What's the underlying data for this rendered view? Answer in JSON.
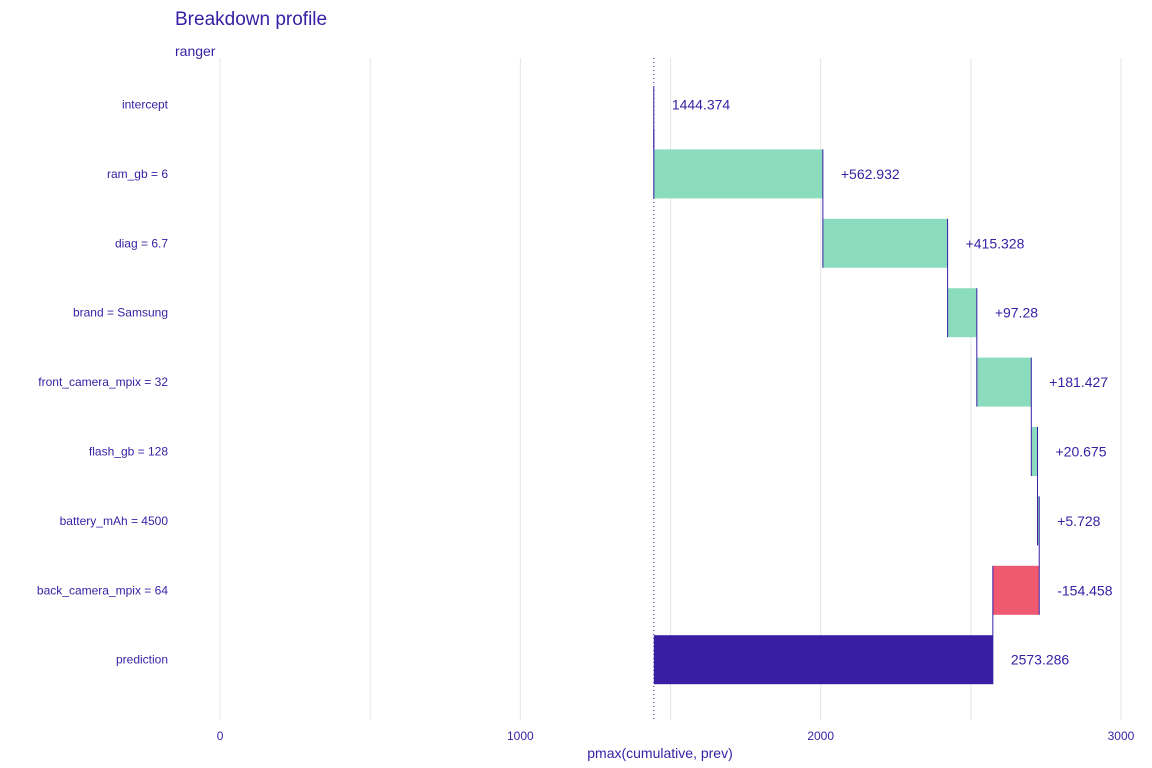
{
  "chart_data": {
    "type": "bar",
    "subtype": "waterfall",
    "title": "Breakdown profile",
    "subtitle": "ranger",
    "xlabel": "pmax(cumulative, prev)",
    "ylabel": "",
    "xlim": [
      -150,
      3030
    ],
    "xticks": [
      0,
      1000,
      2000,
      3000
    ],
    "grid": true,
    "legend": "none",
    "colors": {
      "positive": "#8bdcbe",
      "negative": "#f05a71",
      "prediction": "#371ea3",
      "text": "#371ea3",
      "grid": "#e6e6e6"
    },
    "baseline": 1444.374,
    "items": [
      {
        "label": "intercept",
        "start": 1444.374,
        "end": 1444.374,
        "value_label": "1444.374",
        "kind": "intercept"
      },
      {
        "label": "ram_gb = 6",
        "start": 1444.374,
        "end": 2007.306,
        "value_label": "+562.932",
        "kind": "positive"
      },
      {
        "label": "diag = 6.7",
        "start": 2007.306,
        "end": 2422.634,
        "value_label": "+415.328",
        "kind": "positive"
      },
      {
        "label": "brand = Samsung",
        "start": 2422.634,
        "end": 2519.914,
        "value_label": "+97.28",
        "kind": "positive"
      },
      {
        "label": "front_camera_mpix = 32",
        "start": 2519.914,
        "end": 2701.341,
        "value_label": "+181.427",
        "kind": "positive"
      },
      {
        "label": "flash_gb = 128",
        "start": 2701.341,
        "end": 2722.016,
        "value_label": "+20.675",
        "kind": "positive"
      },
      {
        "label": "battery_mAh = 4500",
        "start": 2722.016,
        "end": 2727.744,
        "value_label": "+5.728",
        "kind": "positive"
      },
      {
        "label": "back_camera_mpix = 64",
        "start": 2727.744,
        "end": 2573.286,
        "value_label": "-154.458",
        "kind": "negative"
      },
      {
        "label": "prediction",
        "start": 1444.374,
        "end": 2573.286,
        "value_label": "2573.286",
        "kind": "prediction"
      }
    ]
  }
}
